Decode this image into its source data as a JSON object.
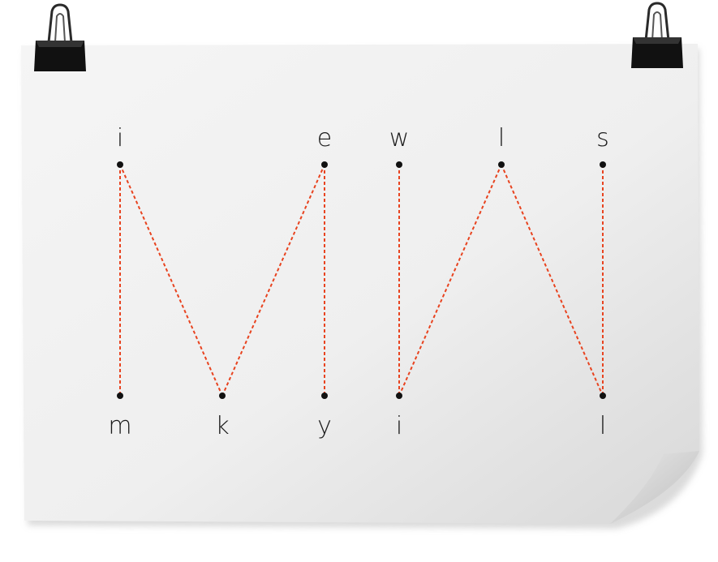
{
  "colors": {
    "paper": "#f1f1f1",
    "paper_shadow": "#cfcfcf",
    "line": "#e8431f",
    "dot": "#111111",
    "clip": "#111111"
  },
  "icons": {
    "left_clip": "binder-clip-icon",
    "right_clip": "binder-clip-icon"
  },
  "top_letters": [
    "i",
    "e",
    "w",
    "l",
    "s"
  ],
  "bottom_letters": [
    "m",
    "k",
    "y",
    "i",
    "l"
  ]
}
